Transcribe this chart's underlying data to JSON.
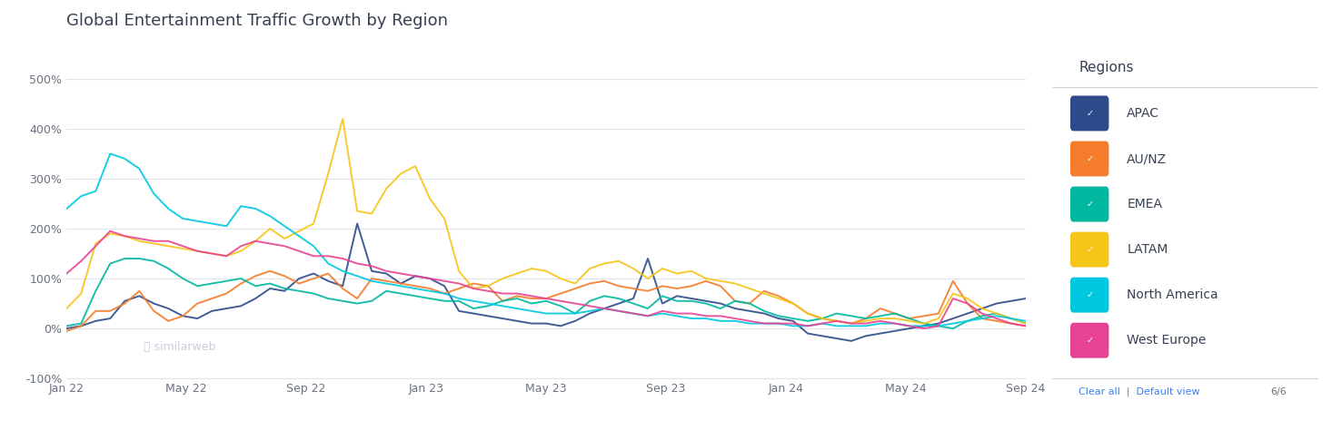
{
  "title": "Global Entertainment Traffic Growth by Region",
  "background_color": "#ffffff",
  "plot_bg_color": "#ffffff",
  "grid_color": "#e0e4ea",
  "ylabel": "",
  "xlabel": "",
  "ylim": [
    -100,
    520
  ],
  "yticks": [
    -100,
    0,
    100,
    200,
    300,
    400,
    500
  ],
  "ytick_labels": [
    "-100%",
    "0%",
    "100%",
    "200%",
    "300%",
    "400%",
    "500%"
  ],
  "xtick_labels": [
    "Jan 22",
    "May 22",
    "Sep 22",
    "Jan 23",
    "May 23",
    "Sep 23",
    "Jan 24",
    "May 24",
    "Sep 24"
  ],
  "legend_title": "Regions",
  "legend_entries": [
    "APAC",
    "AU/NZ",
    "EMEA",
    "LATAM",
    "North America",
    "West Europe"
  ],
  "legend_colors": [
    "#2d4a8a",
    "#f47c2a",
    "#00b89f",
    "#f5c518",
    "#00c8e0",
    "#e84393"
  ],
  "watermark": "similarweb",
  "series": {
    "APAC": [
      0,
      5,
      15,
      20,
      55,
      65,
      50,
      40,
      25,
      20,
      35,
      40,
      45,
      60,
      80,
      75,
      100,
      110,
      95,
      85,
      210,
      115,
      110,
      90,
      105,
      100,
      85,
      35,
      30,
      25,
      20,
      15,
      10,
      10,
      5,
      15,
      30,
      40,
      50,
      60,
      140,
      50,
      65,
      60,
      55,
      50,
      40,
      35,
      30,
      20,
      15,
      -10,
      -15,
      -20,
      -25,
      -15,
      -10,
      -5,
      0,
      5,
      10,
      20,
      30,
      40,
      50,
      55,
      60
    ],
    "AU/NZ": [
      -5,
      5,
      35,
      35,
      50,
      75,
      35,
      15,
      25,
      50,
      60,
      70,
      90,
      105,
      115,
      105,
      90,
      100,
      110,
      80,
      60,
      100,
      95,
      90,
      85,
      80,
      70,
      80,
      90,
      85,
      55,
      65,
      60,
      60,
      70,
      80,
      90,
      95,
      85,
      80,
      75,
      85,
      80,
      85,
      95,
      85,
      55,
      50,
      75,
      65,
      50,
      30,
      20,
      15,
      10,
      20,
      40,
      30,
      20,
      25,
      30,
      95,
      50,
      20,
      15,
      10,
      5
    ],
    "EMEA": [
      5,
      10,
      75,
      130,
      140,
      140,
      135,
      120,
      100,
      85,
      90,
      95,
      100,
      85,
      90,
      80,
      75,
      70,
      60,
      55,
      50,
      55,
      75,
      70,
      65,
      60,
      55,
      55,
      40,
      45,
      55,
      60,
      50,
      55,
      45,
      30,
      55,
      65,
      60,
      50,
      40,
      65,
      55,
      55,
      50,
      40,
      55,
      50,
      35,
      25,
      20,
      15,
      20,
      30,
      25,
      20,
      25,
      30,
      20,
      10,
      5,
      0,
      15,
      25,
      30,
      20,
      10
    ],
    "LATAM": [
      40,
      70,
      170,
      190,
      185,
      175,
      170,
      165,
      160,
      155,
      150,
      145,
      155,
      175,
      200,
      180,
      195,
      210,
      310,
      420,
      235,
      230,
      280,
      310,
      325,
      260,
      220,
      115,
      80,
      85,
      100,
      110,
      120,
      115,
      100,
      90,
      120,
      130,
      135,
      120,
      100,
      120,
      110,
      115,
      100,
      95,
      90,
      80,
      70,
      60,
      50,
      30,
      20,
      15,
      10,
      15,
      20,
      20,
      15,
      10,
      20,
      70,
      60,
      40,
      30,
      20,
      10
    ],
    "North America": [
      240,
      265,
      275,
      350,
      340,
      320,
      270,
      240,
      220,
      215,
      210,
      205,
      245,
      240,
      225,
      205,
      185,
      165,
      130,
      115,
      105,
      95,
      90,
      85,
      80,
      75,
      70,
      60,
      55,
      50,
      45,
      40,
      35,
      30,
      30,
      30,
      35,
      40,
      35,
      30,
      25,
      30,
      25,
      20,
      20,
      15,
      15,
      10,
      10,
      10,
      5,
      5,
      10,
      5,
      5,
      5,
      10,
      10,
      5,
      5,
      5,
      10,
      15,
      20,
      25,
      20,
      15
    ],
    "West Europe": [
      110,
      135,
      165,
      195,
      185,
      180,
      175,
      175,
      165,
      155,
      150,
      145,
      165,
      175,
      170,
      165,
      155,
      145,
      145,
      140,
      130,
      125,
      115,
      110,
      105,
      100,
      95,
      90,
      80,
      75,
      70,
      70,
      65,
      60,
      55,
      50,
      45,
      40,
      35,
      30,
      25,
      35,
      30,
      30,
      25,
      25,
      20,
      15,
      10,
      10,
      10,
      5,
      10,
      15,
      10,
      10,
      15,
      10,
      5,
      0,
      5,
      60,
      50,
      30,
      20,
      10,
      5
    ]
  }
}
